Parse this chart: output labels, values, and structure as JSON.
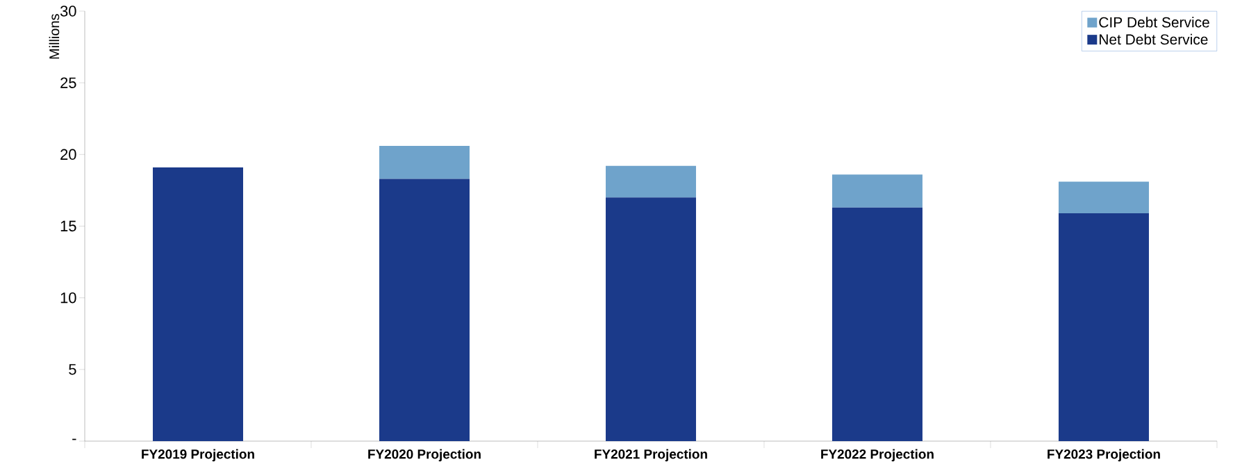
{
  "chart_data": {
    "type": "bar",
    "stacked": true,
    "ylabel": "Millions",
    "categories": [
      "FY2019 Projection",
      "FY2020 Projection",
      "FY2021 Projection",
      "FY2022 Projection",
      "FY2023 Projection"
    ],
    "series": [
      {
        "name": "Net Debt Service",
        "color": "#1b3a8a",
        "values": [
          19.1,
          18.3,
          17.0,
          16.3,
          15.9
        ]
      },
      {
        "name": "CIP Debt Service",
        "color": "#6fa3cb",
        "values": [
          null,
          2.3,
          2.2,
          2.3,
          2.2
        ]
      }
    ],
    "ylim": [
      0,
      30
    ],
    "yticks": [
      {
        "value": 0,
        "label": "-"
      },
      5,
      10,
      15,
      20,
      25,
      30
    ],
    "legend": "top right",
    "grid": false
  }
}
